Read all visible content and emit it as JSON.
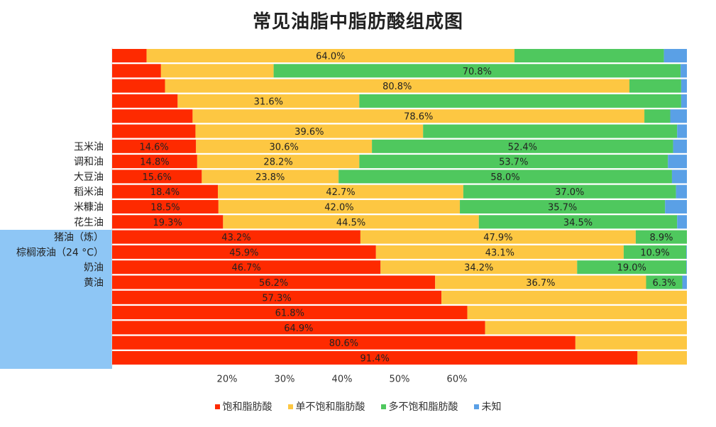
{
  "chart_data": {
    "type": "bar",
    "title": "常见油脂中脂肪酸组成图",
    "orientation": "horizontal-stacked",
    "xlim": [
      0,
      100
    ],
    "x_tick_labels": [
      {
        "value": 20,
        "label": "20%"
      },
      {
        "value": 30,
        "label": "30%"
      },
      {
        "value": 40,
        "label": "40%"
      },
      {
        "value": 50,
        "label": "50%"
      },
      {
        "value": 60,
        "label": "60%"
      }
    ],
    "legend_position": "bottom",
    "series": [
      {
        "name": "饱和脂肪酸",
        "color": "#fe2a00"
      },
      {
        "name": "单不饱和脂肪酸",
        "color": "#fdc742"
      },
      {
        "name": "多不饱和脂肪酸",
        "color": "#4fc85e"
      },
      {
        "name": "未知",
        "color": "#5aa0e6"
      }
    ],
    "rows": [
      {
        "label": "",
        "values": [
          6.0,
          64.0,
          26.0,
          4.0
        ],
        "value_labels": [
          "",
          "64.0%",
          "",
          ""
        ]
      },
      {
        "label": "",
        "values": [
          8.5,
          19.6,
          70.8,
          1.1
        ],
        "value_labels": [
          "",
          "",
          "70.8%",
          ""
        ]
      },
      {
        "label": "",
        "values": [
          9.2,
          80.8,
          9.0,
          1.0
        ],
        "value_labels": [
          "",
          "80.8%",
          "",
          ""
        ]
      },
      {
        "label": "",
        "values": [
          11.4,
          31.6,
          56.0,
          1.0
        ],
        "value_labels": [
          "",
          "31.6%",
          "",
          ""
        ]
      },
      {
        "label": "",
        "values": [
          14.0,
          78.6,
          4.5,
          2.9
        ],
        "value_labels": [
          "",
          "78.6%",
          "",
          ""
        ]
      },
      {
        "label": "",
        "values": [
          14.5,
          39.6,
          44.2,
          1.7
        ],
        "value_labels": [
          "",
          "39.6%",
          "",
          ""
        ]
      },
      {
        "label": "玉米油",
        "values": [
          14.6,
          30.6,
          52.4,
          2.4
        ],
        "value_labels": [
          "14.6%",
          "30.6%",
          "52.4%",
          ""
        ]
      },
      {
        "label": "调和油",
        "values": [
          14.8,
          28.2,
          53.7,
          3.3
        ],
        "value_labels": [
          "14.8%",
          "28.2%",
          "53.7%",
          ""
        ]
      },
      {
        "label": "大豆油",
        "values": [
          15.6,
          23.8,
          58.0,
          2.6
        ],
        "value_labels": [
          "15.6%",
          "23.8%",
          "58.0%",
          ""
        ]
      },
      {
        "label": "稻米油",
        "values": [
          18.4,
          42.7,
          37.0,
          1.9
        ],
        "value_labels": [
          "18.4%",
          "42.7%",
          "37.0%",
          ""
        ]
      },
      {
        "label": "米糠油",
        "values": [
          18.5,
          42.0,
          35.7,
          3.8
        ],
        "value_labels": [
          "18.5%",
          "42.0%",
          "35.7%",
          ""
        ]
      },
      {
        "label": "花生油",
        "values": [
          19.3,
          44.5,
          34.5,
          1.7
        ],
        "value_labels": [
          "19.3%",
          "44.5%",
          "34.5%",
          ""
        ]
      },
      {
        "label": "猪油（炼）",
        "values": [
          43.2,
          47.9,
          8.9,
          0.0
        ],
        "value_labels": [
          "43.2%",
          "47.9%",
          "8.9%",
          ""
        ]
      },
      {
        "label": "棕榈液油（24 °C）",
        "values": [
          45.9,
          43.1,
          10.9,
          0.1
        ],
        "value_labels": [
          "45.9%",
          "43.1%",
          "10.9%",
          ""
        ]
      },
      {
        "label": "奶油",
        "values": [
          46.7,
          34.2,
          19.0,
          0.1
        ],
        "value_labels": [
          "46.7%",
          "34.2%",
          "19.0%",
          ""
        ]
      },
      {
        "label": "黄油",
        "values": [
          56.2,
          36.7,
          6.3,
          0.8
        ],
        "value_labels": [
          "56.2%",
          "36.7%",
          "6.3%",
          ""
        ]
      },
      {
        "label": "",
        "values": [
          57.3,
          42.7,
          0.0,
          0.0
        ],
        "value_labels": [
          "57.3%",
          "",
          "",
          ""
        ]
      },
      {
        "label": "",
        "values": [
          61.8,
          38.2,
          0.0,
          0.0
        ],
        "value_labels": [
          "61.8%",
          "",
          "",
          ""
        ]
      },
      {
        "label": "",
        "values": [
          64.9,
          35.1,
          0.0,
          0.0
        ],
        "value_labels": [
          "64.9%",
          "",
          "",
          ""
        ]
      },
      {
        "label": "",
        "values": [
          80.6,
          19.4,
          0.0,
          0.0
        ],
        "value_labels": [
          "80.6%",
          "",
          "",
          ""
        ]
      },
      {
        "label": "",
        "values": [
          91.4,
          8.6,
          0.0,
          0.0
        ],
        "value_labels": [
          "91.4%",
          "",
          "",
          ""
        ]
      }
    ]
  }
}
